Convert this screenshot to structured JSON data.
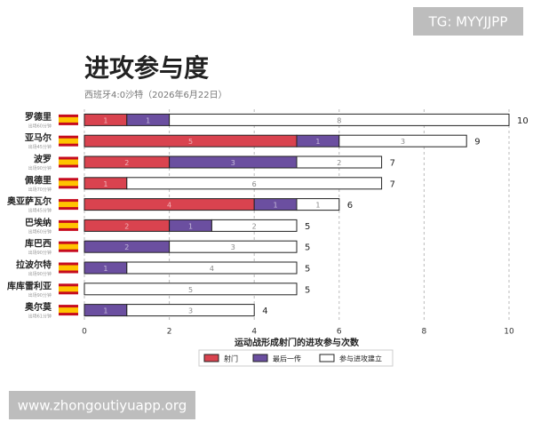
{
  "watermark_top": "TG: MYYJJPP",
  "watermark_bottom": "www.zhongoutiyuapp.org",
  "chart_data": {
    "type": "bar",
    "orientation": "horizontal",
    "stacked": true,
    "title": "进攻参与度",
    "subtitle": "西班牙4:0沙特（2026年6月22日）",
    "x_label": "运动战形成射门的进攻参与次数",
    "categories": [
      "罗德里",
      "亚马尔",
      "波罗",
      "佩德里",
      "奥亚萨瓦尔",
      "巴埃纳",
      "库巴西",
      "拉波尔特",
      "库库雷利亚",
      "奥尔莫"
    ],
    "category_notes": [
      "出场60分钟",
      "出场45分钟",
      "出场90分钟",
      "出场70分钟",
      "出场45分钟",
      "出场60分钟",
      "出场90分钟",
      "出场90分钟",
      "出场90分钟",
      "出场61分钟"
    ],
    "series": [
      {
        "name": "射门",
        "color": "#d9434f",
        "values": [
          1,
          5,
          2,
          1,
          4,
          2,
          0,
          0,
          0,
          0
        ]
      },
      {
        "name": "最后一传",
        "color": "#6b4fa0",
        "values": [
          1,
          1,
          3,
          0,
          1,
          1,
          2,
          1,
          0,
          1
        ]
      },
      {
        "name": "参与进攻建立",
        "color": "#ffffff",
        "values": [
          8,
          3,
          2,
          6,
          1,
          2,
          3,
          4,
          5,
          3
        ]
      }
    ],
    "totals": [
      10,
      9,
      7,
      7,
      6,
      5,
      5,
      5,
      5,
      4
    ],
    "xlim": [
      0,
      10
    ],
    "xticks": [
      0,
      2,
      4,
      6,
      8,
      10
    ],
    "grid": true
  }
}
